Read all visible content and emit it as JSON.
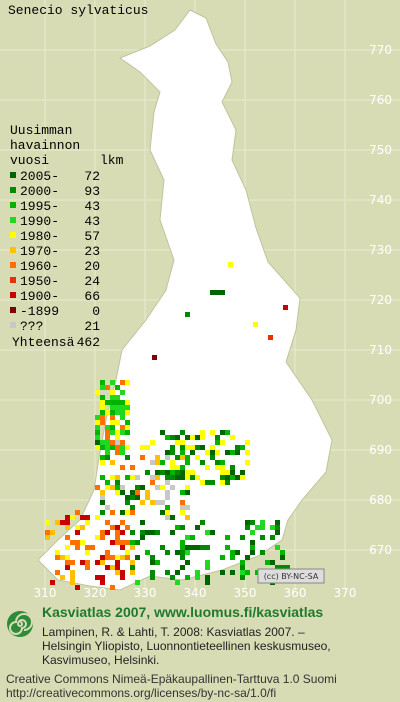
{
  "title": "Senecio sylvaticus",
  "legend": {
    "header": [
      "Uusimman",
      "havainnon",
      "vuosi"
    ],
    "count_header": "lkm",
    "rows": [
      {
        "label": "2005-",
        "count": "72",
        "color": "#006400"
      },
      {
        "label": "2000-",
        "count": "93",
        "color": "#008a00"
      },
      {
        "label": "1995-",
        "count": "43",
        "color": "#00b400"
      },
      {
        "label": "1990-",
        "count": "43",
        "color": "#20d820"
      },
      {
        "label": "1980-",
        "count": "57",
        "color": "#ffff00"
      },
      {
        "label": "1970-",
        "count": "23",
        "color": "#ffc000"
      },
      {
        "label": "1960-",
        "count": "20",
        "color": "#ff7000"
      },
      {
        "label": "1950-",
        "count": "24",
        "color": "#e83000"
      },
      {
        "label": "1900-",
        "count": "66",
        "color": "#c80000"
      },
      {
        "label": "-1899",
        "count": "0",
        "color": "#800000"
      },
      {
        "label": "???",
        "count": "21",
        "color": "#c8c8c8"
      }
    ],
    "total_label": "Yhteensä",
    "total": "462"
  },
  "grid": {
    "y_labels": [
      "770",
      "760",
      "750",
      "740",
      "730",
      "720",
      "710",
      "700",
      "690",
      "680",
      "670"
    ],
    "x_labels": [
      "310",
      "320",
      "330",
      "340",
      "350",
      "360",
      "370"
    ]
  },
  "badge": "(cc) BY-NC-SA",
  "footer": {
    "site": "Kasviatlas 2007, www.luomus.fi/kasviatlas",
    "citation": [
      "Lampinen, R. & Lahti, T. 2008: Kasviatlas 2007. –",
      "Helsingin Yliopisto, Luonnontieteellinen keskusmuseo,",
      "Kasvimuseo, Helsinki."
    ],
    "license": [
      "Creative Commons Nimeä-Epäkaupallinen-Tarttuva 1.0 Suomi",
      "http://creativecommons.org/licenses/by-nc-sa/1.0/fi"
    ]
  }
}
